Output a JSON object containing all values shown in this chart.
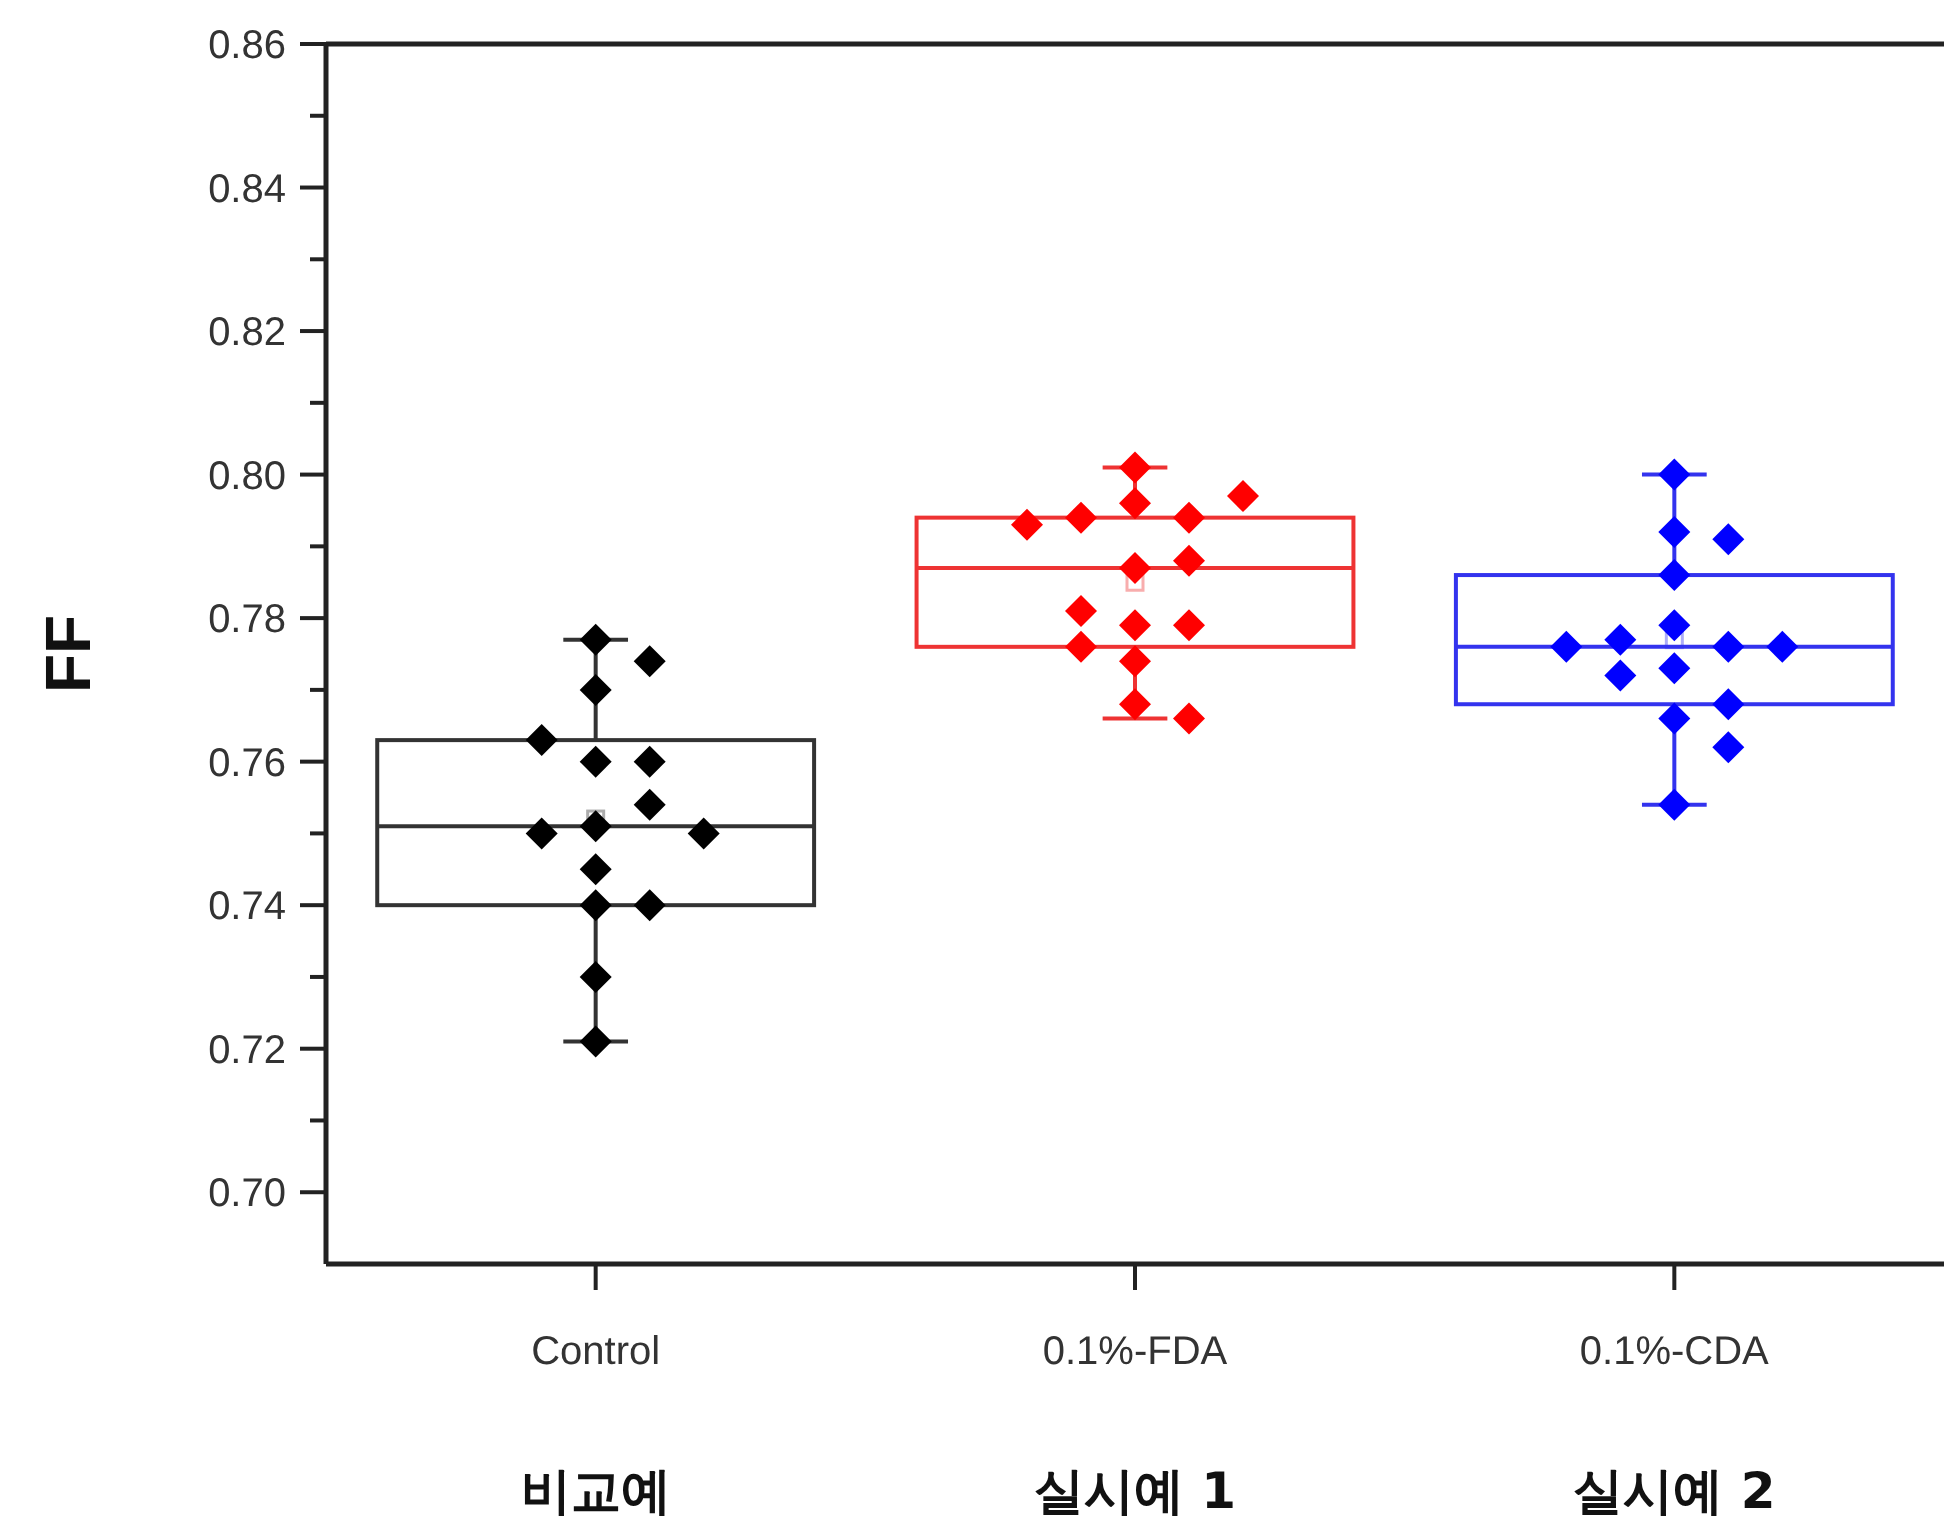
{
  "chart_data": {
    "type": "box",
    "ylabel": "FF",
    "categories": [
      "Control",
      "0.1%-FDA",
      "0.1%-CDA"
    ],
    "ylim": [
      0.69,
      0.86
    ],
    "yticks": [
      {
        "value": 0.7,
        "label": "0.70"
      },
      {
        "value": 0.71,
        "label": null
      },
      {
        "value": 0.72,
        "label": "0.72"
      },
      {
        "value": 0.73,
        "label": null
      },
      {
        "value": 0.74,
        "label": "0.74"
      },
      {
        "value": 0.75,
        "label": null
      },
      {
        "value": 0.76,
        "label": "0.76"
      },
      {
        "value": 0.77,
        "label": null
      },
      {
        "value": 0.78,
        "label": "0.78"
      },
      {
        "value": 0.79,
        "label": null
      },
      {
        "value": 0.8,
        "label": "0.80"
      },
      {
        "value": 0.81,
        "label": null
      },
      {
        "value": 0.82,
        "label": "0.82"
      },
      {
        "value": 0.83,
        "label": null
      },
      {
        "value": 0.84,
        "label": "0.84"
      },
      {
        "value": 0.85,
        "label": null
      },
      {
        "value": 0.86,
        "label": "0.86"
      }
    ],
    "colors": [
      "#333333",
      "#ee3333",
      "#3333ee"
    ],
    "boxes": [
      {
        "low": 0.721,
        "q1": 0.74,
        "median": 0.751,
        "q3": 0.763,
        "high": 0.777,
        "mean": 0.752
      },
      {
        "low": 0.766,
        "q1": 0.776,
        "median": 0.787,
        "q3": 0.794,
        "high": 0.801,
        "mean": 0.785
      },
      {
        "low": 0.754,
        "q1": 0.768,
        "median": 0.776,
        "q3": 0.786,
        "high": 0.8,
        "mean": 0.777
      }
    ],
    "marker": "diamond",
    "series": [
      {
        "type": "scatter",
        "color": "#000000",
        "x": [
          "Control",
          "Control",
          "Control",
          "Control",
          "Control",
          "Control",
          "Control",
          "Control",
          "Control",
          "Control",
          "Control",
          "Control",
          "Control",
          "Control",
          "Control"
        ],
        "values": [
          0.751,
          0.777,
          0.76,
          0.74,
          0.754,
          0.77,
          0.76,
          0.745,
          0.73,
          0.721,
          0.75,
          0.774,
          0.763,
          0.74,
          0.75
        ]
      },
      {
        "type": "scatter",
        "color": "#ff0000",
        "x": [
          "0.1%-FDA",
          "0.1%-FDA",
          "0.1%-FDA",
          "0.1%-FDA",
          "0.1%-FDA",
          "0.1%-FDA",
          "0.1%-FDA",
          "0.1%-FDA",
          "0.1%-FDA",
          "0.1%-FDA",
          "0.1%-FDA",
          "0.1%-FDA",
          "0.1%-FDA",
          "0.1%-FDA",
          "0.1%-FDA"
        ],
        "values": [
          0.796,
          0.774,
          0.794,
          0.787,
          0.768,
          0.801,
          0.794,
          0.788,
          0.779,
          0.779,
          0.781,
          0.766,
          0.797,
          0.776,
          0.793
        ]
      },
      {
        "type": "scatter",
        "color": "#0000ff",
        "x": [
          "0.1%-CDA",
          "0.1%-CDA",
          "0.1%-CDA",
          "0.1%-CDA",
          "0.1%-CDA",
          "0.1%-CDA",
          "0.1%-CDA",
          "0.1%-CDA",
          "0.1%-CDA",
          "0.1%-CDA",
          "0.1%-CDA",
          "0.1%-CDA",
          "0.1%-CDA",
          "0.1%-CDA",
          "0.1%-CDA"
        ],
        "values": [
          0.779,
          0.776,
          0.8,
          0.777,
          0.766,
          0.792,
          0.791,
          0.786,
          0.773,
          0.768,
          0.754,
          0.776,
          0.762,
          0.776,
          0.772
        ]
      }
    ],
    "annotations": [
      "비교예",
      "실시예 1",
      "실시예 2"
    ]
  }
}
